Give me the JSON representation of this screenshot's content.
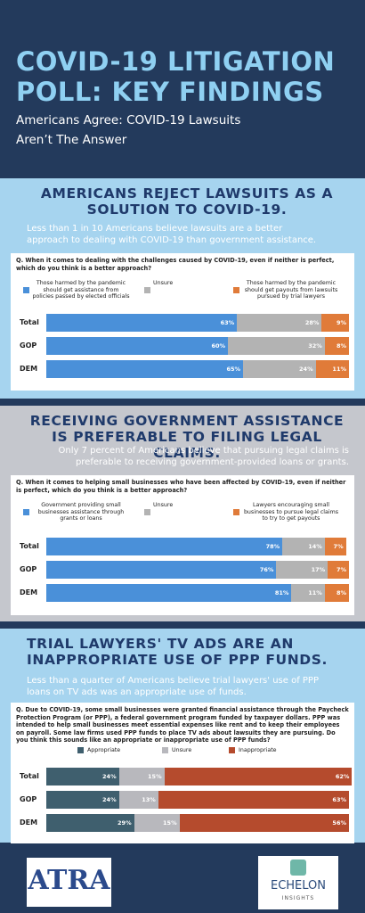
{
  "header": {
    "title": "COVID-19 LITIGATION POLL: KEY FINDINGS",
    "subtitle": "Americans Agree: COVID-19 Lawsuits Aren’t The Answer"
  },
  "chart_data": [
    {
      "type": "bar",
      "orientation": "horizontal",
      "stacked": true,
      "heading": "AMERICANS REJECT LAWSUITS AS A SOLUTION TO COVID-19.",
      "description": "Less than 1 in 10 Americans believe lawsuits are a better approach to dealing with COVID-19 than government assistance.",
      "title": "Q. When it comes to dealing with the challenges caused by COVID-19, even if neither is perfect, which do you think is a better approach?",
      "categories": [
        "Total",
        "GOP",
        "DEM"
      ],
      "xlim": [
        0,
        100
      ],
      "series": [
        {
          "name": "Those harmed by the pandemic should get assistance from policies passed by elected officials",
          "color": "#4a90d9",
          "values": [
            63,
            60,
            65
          ],
          "value_labels": [
            "63%",
            "60%",
            "65%"
          ]
        },
        {
          "name": "Unsure",
          "color": "#b3b3b3",
          "values": [
            28,
            32,
            24
          ],
          "value_labels": [
            "28%",
            "32%",
            "24%"
          ]
        },
        {
          "name": "Those harmed by the pandemic should get payouts from lawsuits pursued by trial lawyers",
          "color": "#e07b39",
          "values": [
            9,
            8,
            11
          ],
          "value_labels": [
            "9%",
            "8%",
            "11%"
          ]
        }
      ]
    },
    {
      "type": "bar",
      "orientation": "horizontal",
      "stacked": true,
      "heading": "RECEIVING GOVERNMENT ASSISTANCE IS PREFERABLE TO FILING LEGAL CLAIMS.",
      "description": "Only 7 percent of Americans believe that pursuing legal claims is preferable to receiving government-provided loans or grants.",
      "title": "Q. When it comes to helping small businesses who have been affected by COVID-19, even if neither is perfect, which do you think is a better approach?",
      "categories": [
        "Total",
        "GOP",
        "DEM"
      ],
      "xlim": [
        0,
        100
      ],
      "series": [
        {
          "name": "Government providing small businesses assistance through grants or loans",
          "color": "#4a90d9",
          "values": [
            78,
            76,
            81
          ],
          "value_labels": [
            "78%",
            "76%",
            "81%"
          ]
        },
        {
          "name": "Unsure",
          "color": "#b3b3b3",
          "values": [
            14,
            17,
            11
          ],
          "value_labels": [
            "14%",
            "17%",
            "11%"
          ]
        },
        {
          "name": "Lawyers encouraging small businesses to pursue legal claims to try to get payouts",
          "color": "#e07b39",
          "values": [
            7,
            7,
            8
          ],
          "value_labels": [
            "7%",
            "7%",
            "8%"
          ]
        }
      ]
    },
    {
      "type": "bar",
      "orientation": "horizontal",
      "stacked": true,
      "heading": "TRIAL LAWYERS' TV ADS ARE AN INAPPROPRIATE USE OF PPP FUNDS.",
      "description": "Less than a quarter of Americans believe trial lawyers' use of PPP loans on TV ads was an appropriate use of funds.",
      "title": "Q. Due to COVID-19, some small businesses were granted financial assistance through the Paycheck Protection Program (or PPP), a federal government program funded by taxpayer dollars. PPP was intended to help small businesses meet essential expenses like rent and to keep their employees on payroll. Some law firms used PPP funds to place TV ads about lawsuits they are pursuing. Do you think this sounds like an appropriate or inappropriate use of PPP funds?",
      "categories": [
        "Total",
        "GOP",
        "DEM"
      ],
      "xlim": [
        0,
        100
      ],
      "series": [
        {
          "name": "Appropriate",
          "color": "#3f5f6e",
          "values": [
            24,
            24,
            29
          ],
          "value_labels": [
            "24%",
            "24%",
            "29%"
          ]
        },
        {
          "name": "Unsure",
          "color": "#b8b8bd",
          "values": [
            15,
            13,
            15
          ],
          "value_labels": [
            "15%",
            "13%",
            "15%"
          ]
        },
        {
          "name": "Inappropriate",
          "color": "#b54b2d",
          "values": [
            62,
            63,
            56
          ],
          "value_labels": [
            "62%",
            "63%",
            "56%"
          ]
        }
      ]
    }
  ],
  "footer": {
    "left_logo": "ATRA",
    "right_logo": "ECHELON",
    "right_logo_sub": "INSIGHTS"
  }
}
